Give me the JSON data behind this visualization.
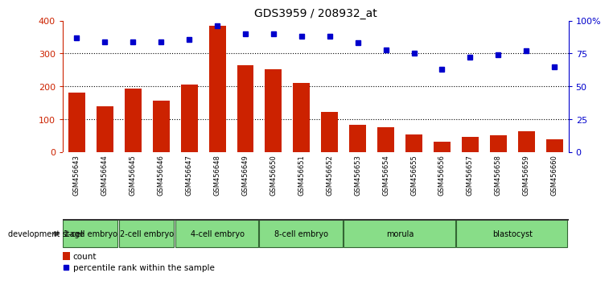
{
  "title": "GDS3959 / 208932_at",
  "samples": [
    "GSM456643",
    "GSM456644",
    "GSM456645",
    "GSM456646",
    "GSM456647",
    "GSM456648",
    "GSM456649",
    "GSM456650",
    "GSM456651",
    "GSM456652",
    "GSM456653",
    "GSM456654",
    "GSM456655",
    "GSM456656",
    "GSM456657",
    "GSM456658",
    "GSM456659",
    "GSM456660"
  ],
  "counts": [
    180,
    140,
    193,
    157,
    205,
    385,
    265,
    252,
    210,
    122,
    82,
    75,
    52,
    30,
    45,
    50,
    63,
    38
  ],
  "percentile_ranks": [
    87,
    84,
    84,
    84,
    86,
    96,
    90,
    90,
    88,
    88,
    83,
    78,
    75,
    63,
    72,
    74,
    77,
    65
  ],
  "bar_color": "#cc2200",
  "dot_color": "#0000cc",
  "ylim_left": [
    0,
    400
  ],
  "ylim_right": [
    0,
    100
  ],
  "yticks_left": [
    0,
    100,
    200,
    300,
    400
  ],
  "yticks_right": [
    0,
    25,
    50,
    75,
    100
  ],
  "ytick_labels_right": [
    "0",
    "25",
    "50",
    "75",
    "100%"
  ],
  "grid_values": [
    100,
    200,
    300
  ],
  "stages": [
    {
      "label": "1-cell embryo",
      "start": 0,
      "end": 2
    },
    {
      "label": "2-cell embryo",
      "start": 2,
      "end": 4
    },
    {
      "label": "4-cell embryo",
      "start": 4,
      "end": 7
    },
    {
      "label": "8-cell embryo",
      "start": 7,
      "end": 10
    },
    {
      "label": "morula",
      "start": 10,
      "end": 14
    },
    {
      "label": "blastocyst",
      "start": 14,
      "end": 18
    }
  ],
  "tick_bg_color": "#bbbbbb",
  "stage_bg_color": "#88dd88",
  "stage_border_color": "#336633",
  "stage_top_border_color": "#333333",
  "dev_stage_label": "development stage",
  "legend_count_label": "count",
  "legend_percentile_label": "percentile rank within the sample",
  "bg_color": "#ffffff"
}
